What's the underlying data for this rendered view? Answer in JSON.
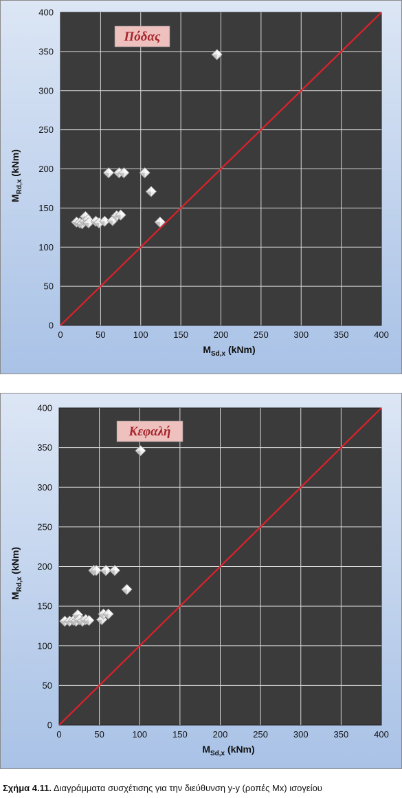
{
  "caption": {
    "label": "Σχήμα 4.11.",
    "text": "Διαγράμματα συσχέτισης για την διεύθυνση y-y (ροπές Mx) ισογείου"
  },
  "colors": {
    "plot_bg": "#3b3b3b",
    "grid": "#d9d9d9",
    "diagonal": "#e0202a",
    "marker": "#ececec",
    "label_box": "#eec1bf",
    "label_text": "#a6242b",
    "frame_top": "#dce6f5",
    "frame_bottom": "#a9c2e6"
  },
  "chart_data": [
    {
      "type": "scatter",
      "title": "Πόδας",
      "xlabel_main": "M",
      "xlabel_sub": "Sd,x",
      "xlabel_unit": " (kNm)",
      "ylabel_main": "M",
      "ylabel_sub": "Rd,x",
      "ylabel_unit": " (kNm)",
      "xlim": [
        0,
        400
      ],
      "ylim": [
        0,
        400
      ],
      "xticks": [
        0,
        50,
        100,
        150,
        200,
        250,
        300,
        350,
        400
      ],
      "yticks": [
        0,
        50,
        100,
        150,
        200,
        250,
        300,
        350,
        400
      ],
      "grid": true,
      "reference_line": {
        "x": [
          0,
          400
        ],
        "y": [
          0,
          400
        ]
      },
      "points": [
        [
          20,
          132
        ],
        [
          24,
          131
        ],
        [
          27,
          130
        ],
        [
          30,
          133
        ],
        [
          31,
          139
        ],
        [
          34,
          135
        ],
        [
          35,
          131
        ],
        [
          44,
          133
        ],
        [
          48,
          131
        ],
        [
          55,
          133
        ],
        [
          60,
          195
        ],
        [
          65,
          134
        ],
        [
          70,
          140
        ],
        [
          73,
          195
        ],
        [
          75,
          141
        ],
        [
          79,
          195
        ],
        [
          105,
          195
        ],
        [
          113,
          171
        ],
        [
          124,
          132
        ],
        [
          195,
          346
        ]
      ]
    },
    {
      "type": "scatter",
      "title": "Κεφαλή",
      "xlabel_main": "M",
      "xlabel_sub": "Sd,x",
      "xlabel_unit": " (kNm)",
      "ylabel_main": "M",
      "ylabel_sub": "Rd,x",
      "ylabel_unit": " (kNm)",
      "xlim": [
        0,
        400
      ],
      "ylim": [
        0,
        400
      ],
      "xticks": [
        0,
        50,
        100,
        150,
        200,
        250,
        300,
        350,
        400
      ],
      "yticks": [
        0,
        50,
        100,
        150,
        200,
        250,
        300,
        350,
        400
      ],
      "grid": true,
      "reference_line": {
        "x": [
          0,
          400
        ],
        "y": [
          0,
          400
        ]
      },
      "points": [
        [
          7,
          131
        ],
        [
          13,
          131
        ],
        [
          18,
          132
        ],
        [
          21,
          131
        ],
        [
          23,
          139
        ],
        [
          25,
          133
        ],
        [
          29,
          131
        ],
        [
          33,
          133
        ],
        [
          37,
          132
        ],
        [
          43,
          195
        ],
        [
          46,
          195
        ],
        [
          53,
          133
        ],
        [
          55,
          140
        ],
        [
          58,
          195
        ],
        [
          61,
          140
        ],
        [
          69,
          195
        ],
        [
          84,
          171
        ],
        [
          101,
          346
        ]
      ]
    }
  ]
}
